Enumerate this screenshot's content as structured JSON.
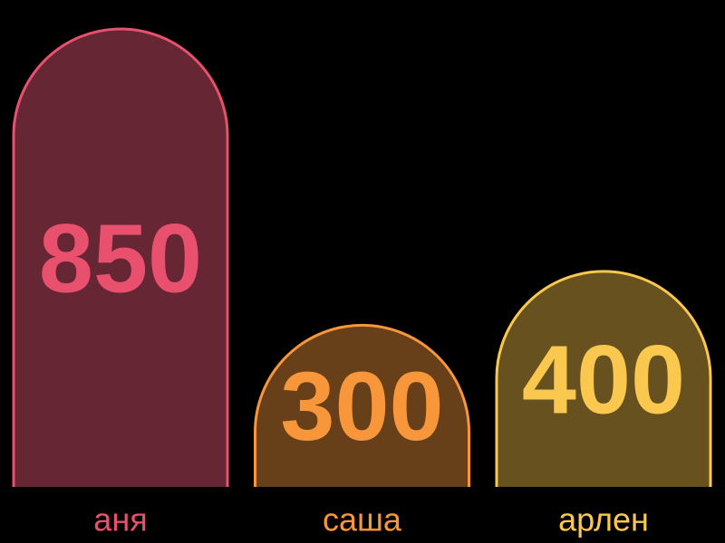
{
  "chart_data": {
    "type": "bar",
    "title": "",
    "xlabel": "",
    "ylabel": "",
    "categories": [
      "аня",
      "саша",
      "арлен"
    ],
    "values": [
      850,
      300,
      400
    ],
    "colors": [
      "#e8506e",
      "#f7963a",
      "#fbc84f"
    ],
    "fill_colors": [
      "#662634",
      "#673f19",
      "#67511f"
    ],
    "background": "#000000",
    "grid": false,
    "legend": "none",
    "bar_shape": "rounded-top",
    "value_labels": "inside-bar",
    "category_labels": "below-bar"
  }
}
